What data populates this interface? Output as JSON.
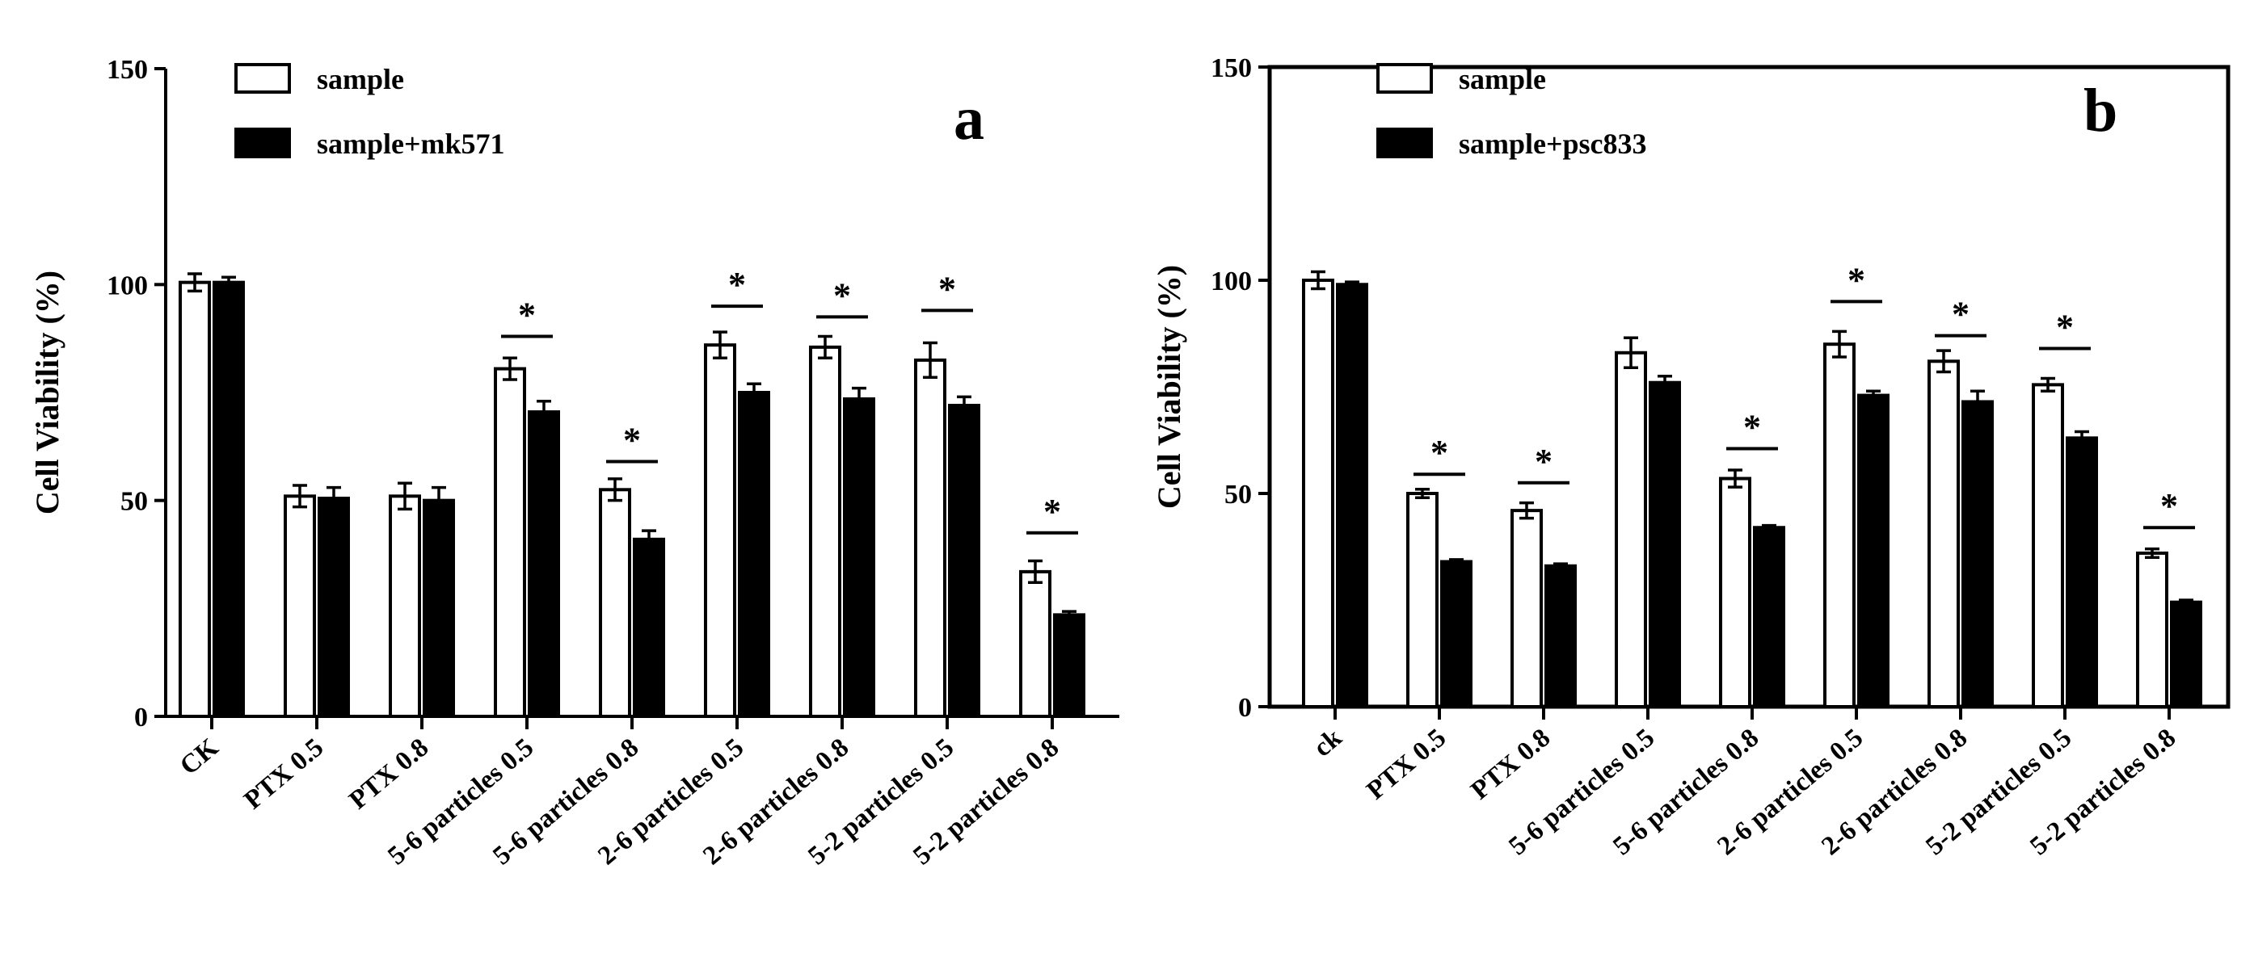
{
  "chart_data": [
    {
      "type": "bar",
      "panel_label": "a",
      "ylabel": "Cell Viability (%)",
      "ylim": [
        0,
        150
      ],
      "yticks": [
        0,
        50,
        100,
        150
      ],
      "categories": [
        "CK",
        "PTX 0.5",
        "PTX 0.8",
        "5-6 particles 0.5",
        "5-6 particles 0.8",
        "2-6 particles 0.5",
        "2-6 particles 0.8",
        "5-2 particles 0.5",
        "5-2 particles 0.8"
      ],
      "series": [
        {
          "name": "sample",
          "fill": "#ffffff",
          "values": [
            100.5,
            51,
            51,
            80.5,
            52.5,
            86,
            85.5,
            82.5,
            33.5
          ],
          "errors": [
            2,
            2.5,
            3,
            2.5,
            2.5,
            3,
            2.5,
            4,
            2.5
          ]
        },
        {
          "name": "sample+mk571",
          "fill": "#000000",
          "values": [
            100.5,
            50.5,
            50,
            70.5,
            41,
            75,
            73.5,
            72,
            23.5
          ],
          "errors": [
            1.2,
            2.5,
            3,
            2.5,
            2,
            2,
            2.5,
            2,
            0.8
          ]
        }
      ],
      "significance": [
        {
          "category": 3,
          "y": 88,
          "label": "*"
        },
        {
          "category": 4,
          "y": 59,
          "label": "*"
        },
        {
          "category": 5,
          "y": 95,
          "label": "*"
        },
        {
          "category": 6,
          "y": 92.5,
          "label": "*"
        },
        {
          "category": 7,
          "y": 94,
          "label": "*"
        },
        {
          "category": 8,
          "y": 42.5,
          "label": "*"
        }
      ],
      "legend_placement": "top-left",
      "grid": false
    },
    {
      "type": "bar",
      "panel_label": "b",
      "ylabel": "Cell Viability (%)",
      "ylim": [
        0,
        150
      ],
      "yticks": [
        0,
        50,
        100,
        150
      ],
      "categories": [
        "ck",
        "PTX 0.5",
        "PTX 0.8",
        "5-6 particles 0.5",
        "5-6 particles 0.8",
        "2-6 particles 0.5",
        "2-6 particles 0.8",
        "5-2 particles 0.5",
        "5-2 particles 0.8"
      ],
      "series": [
        {
          "name": "sample",
          "fill": "#ffffff",
          "values": [
            100,
            50,
            46,
            83,
            53.5,
            85,
            81,
            75.5,
            36
          ],
          "errors": [
            2,
            1,
            1.8,
            3.5,
            2,
            3,
            2.5,
            1.5,
            1
          ]
        },
        {
          "name": "sample+psc833",
          "fill": "#000000",
          "values": [
            99,
            34,
            33,
            76,
            42,
            73,
            71.5,
            63,
            24.5
          ],
          "errors": [
            0.6,
            0.5,
            0.5,
            1.5,
            0.5,
            1,
            2.5,
            1.5,
            0.5
          ]
        }
      ],
      "significance": [
        {
          "category": 1,
          "y": 54.5,
          "label": "*"
        },
        {
          "category": 2,
          "y": 52.5,
          "label": "*"
        },
        {
          "category": 4,
          "y": 60.5,
          "label": "*"
        },
        {
          "category": 5,
          "y": 95,
          "label": "*"
        },
        {
          "category": 6,
          "y": 87,
          "label": "*"
        },
        {
          "category": 7,
          "y": 84,
          "label": "*"
        },
        {
          "category": 8,
          "y": 42,
          "label": "*"
        }
      ],
      "legend_placement": "top-left",
      "grid": false
    }
  ]
}
